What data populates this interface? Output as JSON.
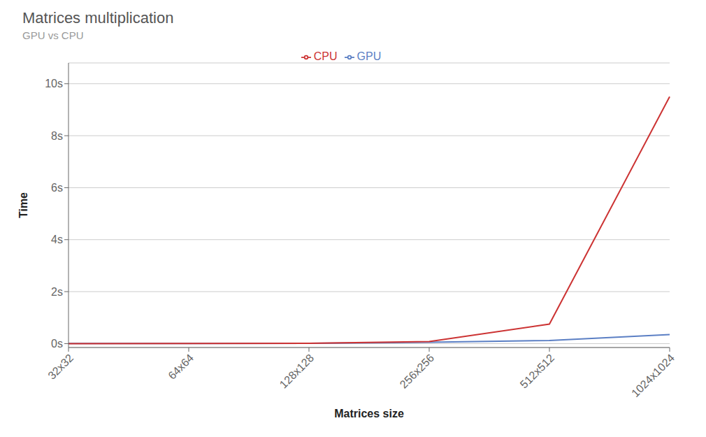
{
  "chart_data": {
    "type": "line",
    "title": "Matrices multiplication",
    "subtitle": "GPU vs CPU",
    "xlabel": "Matrices size",
    "ylabel": "Time",
    "categories": [
      "32x32",
      "64x64",
      "128x128",
      "256x256",
      "512x512",
      "1024x1024"
    ],
    "series": [
      {
        "name": "GPU",
        "color": "#5b7fc4",
        "values": [
          0.002,
          0.003,
          0.01,
          0.05,
          0.12,
          0.35
        ]
      },
      {
        "name": "CPU",
        "color": "#cc3333",
        "values": [
          0.001,
          0.003,
          0.012,
          0.08,
          0.75,
          9.5
        ]
      }
    ],
    "ylim": [
      -0.15,
      10.8
    ],
    "yticks": [
      {
        "value": 0,
        "label": "0s"
      },
      {
        "value": 2,
        "label": "2s"
      },
      {
        "value": 4,
        "label": "4s"
      },
      {
        "value": 6,
        "label": "6s"
      },
      {
        "value": 8,
        "label": "8s"
      },
      {
        "value": 10,
        "label": "10s"
      }
    ],
    "grid": true,
    "legend": "top"
  }
}
